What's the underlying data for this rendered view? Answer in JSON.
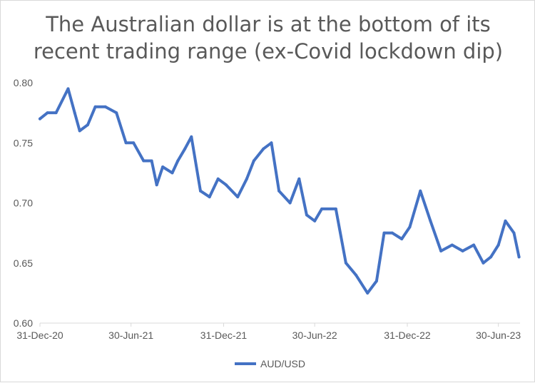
{
  "chart_data": {
    "type": "line",
    "title_lines": [
      "The Australian dollar is at the bottom of its",
      "recent trading range (ex-Covid lockdown dip)"
    ],
    "xlabel": "",
    "ylabel": "",
    "x_tick_labels": [
      "31-Dec-20",
      "30-Jun-21",
      "31-Dec-21",
      "30-Jun-22",
      "31-Dec-22",
      "30-Jun-23"
    ],
    "y_tick_labels": [
      "0.60",
      "0.65",
      "0.70",
      "0.75",
      "0.80"
    ],
    "ylim": [
      0.6,
      0.8
    ],
    "grid": false,
    "legend_position": "bottom",
    "series": [
      {
        "name": "AUD/USD",
        "color": "#4472c4",
        "x": [
          "2020-12-31",
          "2021-01-15",
          "2021-02-01",
          "2021-02-25",
          "2021-03-10",
          "2021-03-20",
          "2021-04-05",
          "2021-04-20",
          "2021-05-10",
          "2021-06-01",
          "2021-06-20",
          "2021-07-05",
          "2021-07-25",
          "2021-08-10",
          "2021-08-20",
          "2021-09-01",
          "2021-09-20",
          "2021-10-01",
          "2021-10-15",
          "2021-10-28",
          "2021-11-15",
          "2021-12-03",
          "2021-12-20",
          "2022-01-05",
          "2022-01-28",
          "2022-02-15",
          "2022-03-01",
          "2022-03-20",
          "2022-04-05",
          "2022-04-20",
          "2022-05-12",
          "2022-05-30",
          "2022-06-14",
          "2022-06-30",
          "2022-07-14",
          "2022-08-11",
          "2022-08-31",
          "2022-09-20",
          "2022-10-13",
          "2022-10-31",
          "2022-11-15",
          "2022-12-01",
          "2022-12-20",
          "2023-01-05",
          "2023-01-26",
          "2023-02-15",
          "2023-03-08",
          "2023-03-30",
          "2023-04-20",
          "2023-05-12",
          "2023-05-31",
          "2023-06-15",
          "2023-06-30",
          "2023-07-14",
          "2023-07-31",
          "2023-08-10"
        ],
        "values": [
          0.77,
          0.775,
          0.775,
          0.795,
          0.775,
          0.76,
          0.765,
          0.78,
          0.78,
          0.775,
          0.75,
          0.75,
          0.735,
          0.735,
          0.715,
          0.73,
          0.725,
          0.735,
          0.745,
          0.755,
          0.71,
          0.705,
          0.72,
          0.715,
          0.705,
          0.72,
          0.735,
          0.745,
          0.75,
          0.71,
          0.7,
          0.72,
          0.69,
          0.685,
          0.695,
          0.695,
          0.65,
          0.64,
          0.625,
          0.635,
          0.675,
          0.675,
          0.67,
          0.68,
          0.71,
          0.685,
          0.66,
          0.665,
          0.66,
          0.665,
          0.65,
          0.655,
          0.665,
          0.685,
          0.675,
          0.655
        ]
      }
    ]
  }
}
